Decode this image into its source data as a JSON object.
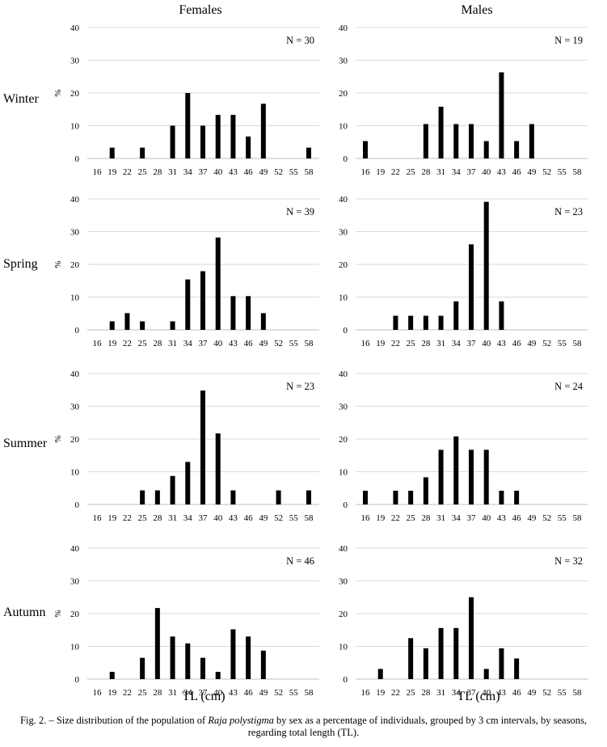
{
  "column_titles": [
    "Females",
    "Males"
  ],
  "season_labels": [
    "Winter",
    "Spring",
    "Summer",
    "Autumn"
  ],
  "x_axis_title": "TL (cm)",
  "caption": {
    "before": "Fig. 2. – Size distribution of the population of ",
    "species": "Raja polystigma",
    "after": " by sex as a percentage of individuals, grouped by 3 cm intervals, by seasons,",
    "line2": "regarding total length (TL)."
  },
  "chart_data": [
    {
      "type": "bar",
      "season": "Winter",
      "sex": "Females",
      "n_label": "N = 30",
      "ylabel": "%",
      "ylim": [
        0,
        40
      ],
      "yticks": [
        0,
        10,
        20,
        30,
        40
      ],
      "grid": true,
      "categories": [
        "16",
        "19",
        "22",
        "25",
        "28",
        "31",
        "34",
        "37",
        "40",
        "43",
        "46",
        "49",
        "52",
        "55",
        "58"
      ],
      "values": [
        0,
        3.3,
        0,
        3.3,
        0,
        10,
        20,
        10,
        13.3,
        13.3,
        6.7,
        16.7,
        0,
        0,
        3.3
      ]
    },
    {
      "type": "bar",
      "season": "Winter",
      "sex": "Males",
      "n_label": "N = 19",
      "ylabel": "",
      "ylim": [
        0,
        40
      ],
      "yticks": [
        0,
        10,
        20,
        30,
        40
      ],
      "grid": true,
      "categories": [
        "16",
        "19",
        "22",
        "25",
        "28",
        "31",
        "34",
        "37",
        "40",
        "43",
        "46",
        "49",
        "52",
        "55",
        "58"
      ],
      "values": [
        5.3,
        0,
        0,
        0,
        10.5,
        15.8,
        10.5,
        10.5,
        5.3,
        26.3,
        5.3,
        10.5,
        0,
        0,
        0
      ]
    },
    {
      "type": "bar",
      "season": "Spring",
      "sex": "Females",
      "n_label": "N = 39",
      "ylabel": "%",
      "ylim": [
        0,
        40
      ],
      "yticks": [
        0,
        10,
        20,
        30,
        40
      ],
      "grid": true,
      "categories": [
        "16",
        "19",
        "22",
        "25",
        "28",
        "31",
        "34",
        "37",
        "40",
        "43",
        "46",
        "49",
        "52",
        "55",
        "58"
      ],
      "values": [
        0,
        2.6,
        5.1,
        2.6,
        0,
        2.6,
        15.4,
        17.9,
        28.2,
        10.3,
        10.3,
        5.1,
        0,
        0,
        0
      ]
    },
    {
      "type": "bar",
      "season": "Spring",
      "sex": "Males",
      "n_label": "N = 23",
      "ylabel": "",
      "ylim": [
        0,
        40
      ],
      "yticks": [
        0,
        10,
        20,
        30,
        40
      ],
      "grid": true,
      "categories": [
        "16",
        "19",
        "22",
        "25",
        "28",
        "31",
        "34",
        "37",
        "40",
        "43",
        "46",
        "49",
        "52",
        "55",
        "58"
      ],
      "values": [
        0,
        0,
        4.3,
        4.3,
        4.3,
        4.3,
        8.7,
        26.1,
        39.1,
        8.7,
        0,
        0,
        0,
        0,
        0
      ]
    },
    {
      "type": "bar",
      "season": "Summer",
      "sex": "Females",
      "n_label": "N = 23",
      "ylabel": "%",
      "ylim": [
        0,
        40
      ],
      "yticks": [
        0,
        10,
        20,
        30,
        40
      ],
      "grid": true,
      "categories": [
        "16",
        "19",
        "22",
        "25",
        "28",
        "31",
        "34",
        "37",
        "40",
        "43",
        "46",
        "49",
        "52",
        "55",
        "58"
      ],
      "values": [
        0,
        0,
        0,
        4.3,
        4.3,
        8.7,
        13,
        34.8,
        21.7,
        4.3,
        0,
        0,
        4.3,
        0,
        4.3
      ]
    },
    {
      "type": "bar",
      "season": "Summer",
      "sex": "Males",
      "n_label": "N = 24",
      "ylabel": "",
      "ylim": [
        0,
        40
      ],
      "yticks": [
        0,
        10,
        20,
        30,
        40
      ],
      "grid": true,
      "categories": [
        "16",
        "19",
        "22",
        "25",
        "28",
        "31",
        "34",
        "37",
        "40",
        "43",
        "46",
        "49",
        "52",
        "55",
        "58"
      ],
      "values": [
        4.2,
        0,
        4.2,
        4.2,
        8.3,
        16.7,
        20.8,
        16.7,
        16.7,
        4.2,
        4.2,
        0,
        0,
        0,
        0
      ]
    },
    {
      "type": "bar",
      "season": "Autumn",
      "sex": "Females",
      "n_label": "N = 46",
      "ylabel": "%",
      "ylim": [
        0,
        40
      ],
      "yticks": [
        0,
        10,
        20,
        30,
        40
      ],
      "grid": true,
      "categories": [
        "16",
        "19",
        "22",
        "25",
        "28",
        "31",
        "34",
        "37",
        "40",
        "43",
        "46",
        "49",
        "52",
        "55",
        "58"
      ],
      "values": [
        0,
        2.2,
        0,
        6.5,
        21.7,
        13,
        10.9,
        6.5,
        2.2,
        15.2,
        13,
        8.7,
        0,
        0,
        0
      ]
    },
    {
      "type": "bar",
      "season": "Autumn",
      "sex": "Males",
      "n_label": "N = 32",
      "ylabel": "",
      "ylim": [
        0,
        40
      ],
      "yticks": [
        0,
        10,
        20,
        30,
        40
      ],
      "grid": true,
      "categories": [
        "16",
        "19",
        "22",
        "25",
        "28",
        "31",
        "34",
        "37",
        "40",
        "43",
        "46",
        "49",
        "52",
        "55",
        "58"
      ],
      "values": [
        0,
        3.1,
        0,
        12.5,
        9.4,
        15.6,
        15.6,
        25,
        3.1,
        9.4,
        6.3,
        0,
        0,
        0,
        0
      ]
    }
  ]
}
